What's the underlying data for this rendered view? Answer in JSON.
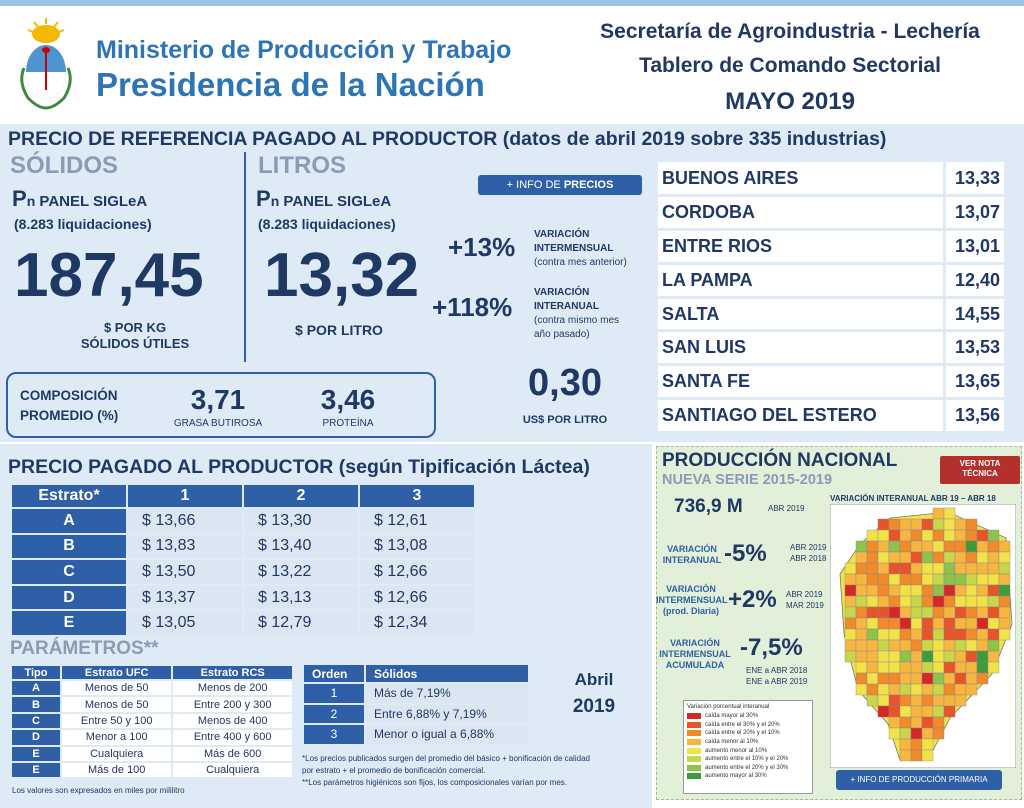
{
  "header": {
    "ministry_line1": "Ministerio de Producción y Trabajo",
    "ministry_line2": "Presidencia de la Nación",
    "secretaria": "Secretaría de Agroindustria - Lechería",
    "tablero": "Tablero de Comando Sectorial",
    "period": "MAYO 2019"
  },
  "referencia": {
    "title": "PRECIO DE REFERENCIA PAGADO AL PRODUCTOR (datos de abril 2019 sobre 335 industrias)",
    "solidos": {
      "heading": "SÓLIDOS",
      "pn_prefix": "P",
      "pn_sub": "n",
      "panel": "PANEL SIGLeA",
      "liquidaciones": "(8.283 liquidaciones)",
      "value": "187,45",
      "unit_line1": "$ POR KG",
      "unit_line2": "SÓLIDOS ÚTILES"
    },
    "litros": {
      "heading": "LITROS",
      "pn_prefix": "P",
      "pn_sub": "n",
      "panel": "PANEL SIGLeA",
      "liquidaciones": "(8.283 liquidaciones)",
      "value": "13,32",
      "unit": "$ POR LITRO"
    },
    "info_button": {
      "prefix": "+ INFO DE ",
      "bold": "PRECIOS"
    },
    "var_intermensual": {
      "value": "+13%",
      "label1": "VARIACIÓN",
      "label2": "INTERMENSUAL",
      "note": "(contra mes anterior)"
    },
    "var_interanual": {
      "value": "+118%",
      "label1": "VARIACIÓN",
      "label2": "INTERANUAL",
      "note1": "(contra mismo mes",
      "note2": "año pasado)"
    },
    "usd": {
      "value": "0,30",
      "unit": "US$ POR LITRO"
    },
    "composicion": {
      "label1": "COMPOSICIÓN",
      "label2": "PROMEDIO (%)",
      "grasa_value": "3,71",
      "grasa_label": "GRASA BUTIROSA",
      "proteina_value": "3,46",
      "proteina_label": "PROTEÍNA"
    },
    "provincias": [
      {
        "name": "BUENOS AIRES",
        "value": "13,33"
      },
      {
        "name": "CORDOBA",
        "value": "13,07"
      },
      {
        "name": "ENTRE RIOS",
        "value": "13,01"
      },
      {
        "name": "LA PAMPA",
        "value": "12,40"
      },
      {
        "name": "SALTA",
        "value": "14,55"
      },
      {
        "name": "SAN LUIS",
        "value": "13,53"
      },
      {
        "name": "SANTA FE",
        "value": "13,65"
      },
      {
        "name": "SANTIAGO DEL ESTERO",
        "value": "13,56"
      }
    ]
  },
  "tipificacion": {
    "title": "PRECIO PAGADO AL PRODUCTOR (según Tipificación Láctea)",
    "headers": [
      "Estrato*",
      "1",
      "2",
      "3"
    ],
    "rows": [
      {
        "estrato": "A",
        "v": [
          "$ 13,66",
          "$ 13,30",
          "$ 12,61"
        ]
      },
      {
        "estrato": "B",
        "v": [
          "$ 13,83",
          "$ 13,40",
          "$ 13,08"
        ]
      },
      {
        "estrato": "C",
        "v": [
          "$ 13,50",
          "$ 13,22",
          "$ 12,66"
        ]
      },
      {
        "estrato": "D",
        "v": [
          "$ 13,37",
          "$ 13,13",
          "$ 12,66"
        ]
      },
      {
        "estrato": "E",
        "v": [
          "$ 13,05",
          "$ 12,79",
          "$ 12,34"
        ]
      }
    ]
  },
  "parametros": {
    "title": "PARÁMETROS**",
    "headers": [
      "Tipo",
      "Estrato UFC",
      "Estrato RCS"
    ],
    "rows": [
      [
        "A",
        "Menos de 50",
        "Menos de 200"
      ],
      [
        "B",
        "Menos de 50",
        "Entre 200 y 300"
      ],
      [
        "C",
        "Entre 50 y 100",
        "Menos de 400"
      ],
      [
        "D",
        "Menor a 100",
        "Entre 400 y 600"
      ],
      [
        "E",
        "Cualquiera",
        "Más de 600"
      ],
      [
        "E",
        "Más de 100",
        "Cualquiera"
      ]
    ],
    "footnote": "Los valores son expresados en miles por mililitro",
    "orden_headers": [
      "Orden",
      "Sólidos"
    ],
    "orden_rows": [
      [
        "1",
        "Más de 7,19%"
      ],
      [
        "2",
        "Entre 6,88% y 7,19%"
      ],
      [
        "3",
        "Menor o igual a 6,88%"
      ]
    ],
    "period_month": "Abril",
    "period_year": "2019",
    "note1": "*Los precios publicados surgen del promedio del básico + bonificación de calidad",
    "note2": "por estrato + el promedio de bonificación comercial.",
    "note3": "**Los parámetros higiénicos son fijos, los composicionales varían por mes."
  },
  "produccion": {
    "title": "PRODUCCIÓN NACIONAL",
    "subtitle": "NUEVA SERIE 2015-2019",
    "nota_button_line1": "VER NOTA",
    "nota_button_line2": "TÉCNICA",
    "total_value": "736,9 M",
    "total_period": "ABR 2019",
    "map_title": "VARIACIÓN INTERANUAL ABR 19 – ABR 18",
    "var_interanual": {
      "label1": "VARIACIÓN",
      "label2": "INTERANUAL",
      "value": "-5%",
      "p1": "ABR 2019",
      "p2": "ABR 2018"
    },
    "var_intermensual": {
      "label1": "VARIACIÓN",
      "label2": "INTERMENSUAL",
      "label3": "(prod. Diaria)",
      "value": "+2%",
      "p1": "ABR 2019",
      "p2": "MAR 2019"
    },
    "var_acumulada": {
      "label1": "VARIACIÓN",
      "label2": "INTERMENSUAL",
      "label3": "ACUMULADA",
      "value": "-7,5%",
      "p1": "ENE a ABR 2018",
      "p2": "ENE a ABR 2019"
    },
    "legend_title": "Variación porcentual interanual",
    "legend": [
      {
        "label": "caída mayor al 30%",
        "color": "#d62728"
      },
      {
        "label": "caída entre el 30% y el 20%",
        "color": "#e8542a"
      },
      {
        "label": "caída entre el 20% y el 10%",
        "color": "#f08a2b"
      },
      {
        "label": "caída menor al 10%",
        "color": "#f7b640"
      },
      {
        "label": "aumento menor al 10%",
        "color": "#f2e24a"
      },
      {
        "label": "aumento entre el 10% y el 20%",
        "color": "#c7d64a"
      },
      {
        "label": "aumento entre el 20% y el 30%",
        "color": "#8fc24a"
      },
      {
        "label": "aumento mayor al 30%",
        "color": "#3e9b3a"
      }
    ],
    "info_button": "+ INFO DE PRODUCCIÓN PRIMARIA"
  }
}
